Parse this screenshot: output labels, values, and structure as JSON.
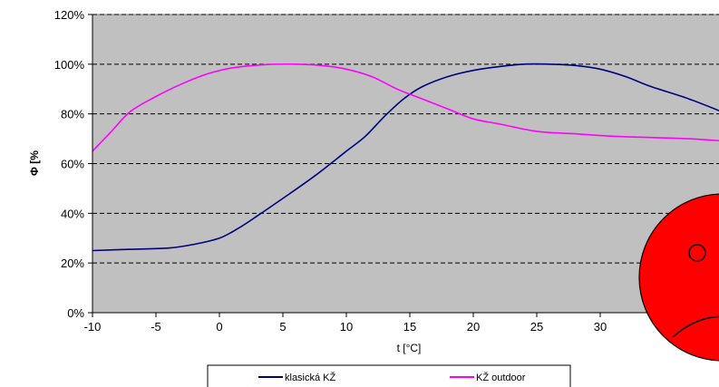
{
  "chart_data": {
    "type": "line",
    "xlabel": "t [°C]",
    "ylabel": "Φ [%",
    "xlim": [
      -10,
      40
    ],
    "ylim": [
      0,
      120
    ],
    "x_ticks": [
      -10,
      -5,
      0,
      5,
      10,
      15,
      20,
      25,
      30
    ],
    "y_ticks": [
      0,
      20,
      40,
      60,
      80,
      100,
      120
    ],
    "y_tick_labels": [
      "0%",
      "20%",
      "40%",
      "60%",
      "80%",
      "100%",
      "120%"
    ],
    "grid": "horizontal dashed",
    "legend_position": "bottom",
    "background_color": "#c0c0c0",
    "series": [
      {
        "name": "klasická KŽ",
        "color": "#000080",
        "x": [
          -10,
          -7,
          -4,
          -2,
          0,
          1.5,
          3,
          5,
          7.5,
          10,
          11.5,
          13,
          14.5,
          16,
          18,
          20,
          22,
          24,
          26,
          28,
          30,
          32,
          34,
          37,
          40
        ],
        "y": [
          25,
          25.5,
          26,
          27.5,
          30,
          34,
          39,
          46,
          55,
          65,
          71,
          79,
          86,
          91,
          95,
          97.5,
          99,
          100,
          100,
          99.5,
          98,
          95,
          91,
          86,
          80
        ]
      },
      {
        "name": "KŽ outdoor",
        "color": "#ff00ff",
        "x": [
          -10,
          -8.5,
          -7,
          -5,
          -3,
          -1,
          1,
          3.5,
          6,
          8,
          10,
          12,
          14,
          16,
          18,
          20,
          22,
          25,
          28,
          31,
          34,
          37,
          40
        ],
        "y": [
          65,
          73,
          81,
          87,
          92,
          96,
          98.5,
          99.8,
          100,
          99.5,
          98,
          95,
          90,
          86,
          82,
          78,
          76,
          73,
          72,
          71,
          70.5,
          70,
          69
        ]
      }
    ]
  }
}
